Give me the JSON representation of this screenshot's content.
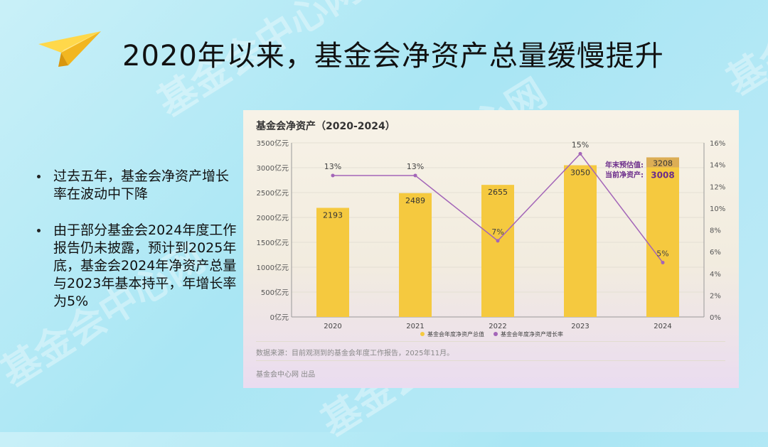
{
  "slide": {
    "title": "2020年以来，基金会净资产总量缓慢提升",
    "bullets": [
      "过去五年，基金会净资产增长率在波动中下降",
      "由于部分基金会2024年度工作报告仍未披露，预计到2025年底，基金会2024年净资产总量与2023年基本持平，年增长率为5%"
    ],
    "watermarks": [
      "基金会中心网",
      "基金会中心网",
      "基金会中心网",
      "心网",
      "基金会中心网"
    ]
  },
  "chart_data": {
    "type": "bar",
    "title": "基金会净资产（2020-2024）",
    "categories": [
      "2020",
      "2021",
      "2022",
      "2023",
      "2024"
    ],
    "series": [
      {
        "name": "基金会年度净资产总值",
        "type": "bar",
        "axis": "left",
        "values": [
          2193,
          2489,
          2655,
          3050,
          3008
        ],
        "labels": [
          "2193",
          "2489",
          "2655",
          "3050",
          "3008"
        ]
      },
      {
        "name": "基金会年度净资产增长率",
        "type": "line",
        "axis": "right",
        "values": [
          13,
          13,
          7,
          15,
          5
        ],
        "labels": [
          "13%",
          "13%",
          "7%",
          "15%",
          "5%"
        ]
      }
    ],
    "estimate_2024": {
      "value": 3208,
      "label": "3208",
      "caption": "年末预估值:"
    },
    "current_2024": {
      "value": 3008,
      "label": "3008",
      "caption": "当前净资产:"
    },
    "y_left": {
      "min": 0,
      "max": 3500,
      "ticks": [
        "0亿元",
        "500亿元",
        "1000亿元",
        "1500亿元",
        "2000亿元",
        "2500亿元",
        "3000亿元",
        "3500亿元"
      ]
    },
    "y_right": {
      "min": 0,
      "max": 16,
      "ticks": [
        "0%",
        "2%",
        "4%",
        "6%",
        "8%",
        "10%",
        "12%",
        "14%",
        "16%"
      ]
    },
    "grid": true,
    "legend_position": "bottom",
    "colors": {
      "bar": "#f5c93f",
      "bar_estimate": "#dcae55",
      "line": "#a365b8",
      "annotation": "#6b2c8a"
    },
    "source": "数据来源：目前观测到的基金会年度工作报告，2025年11月。",
    "publisher": "基金会中心网 出品"
  }
}
